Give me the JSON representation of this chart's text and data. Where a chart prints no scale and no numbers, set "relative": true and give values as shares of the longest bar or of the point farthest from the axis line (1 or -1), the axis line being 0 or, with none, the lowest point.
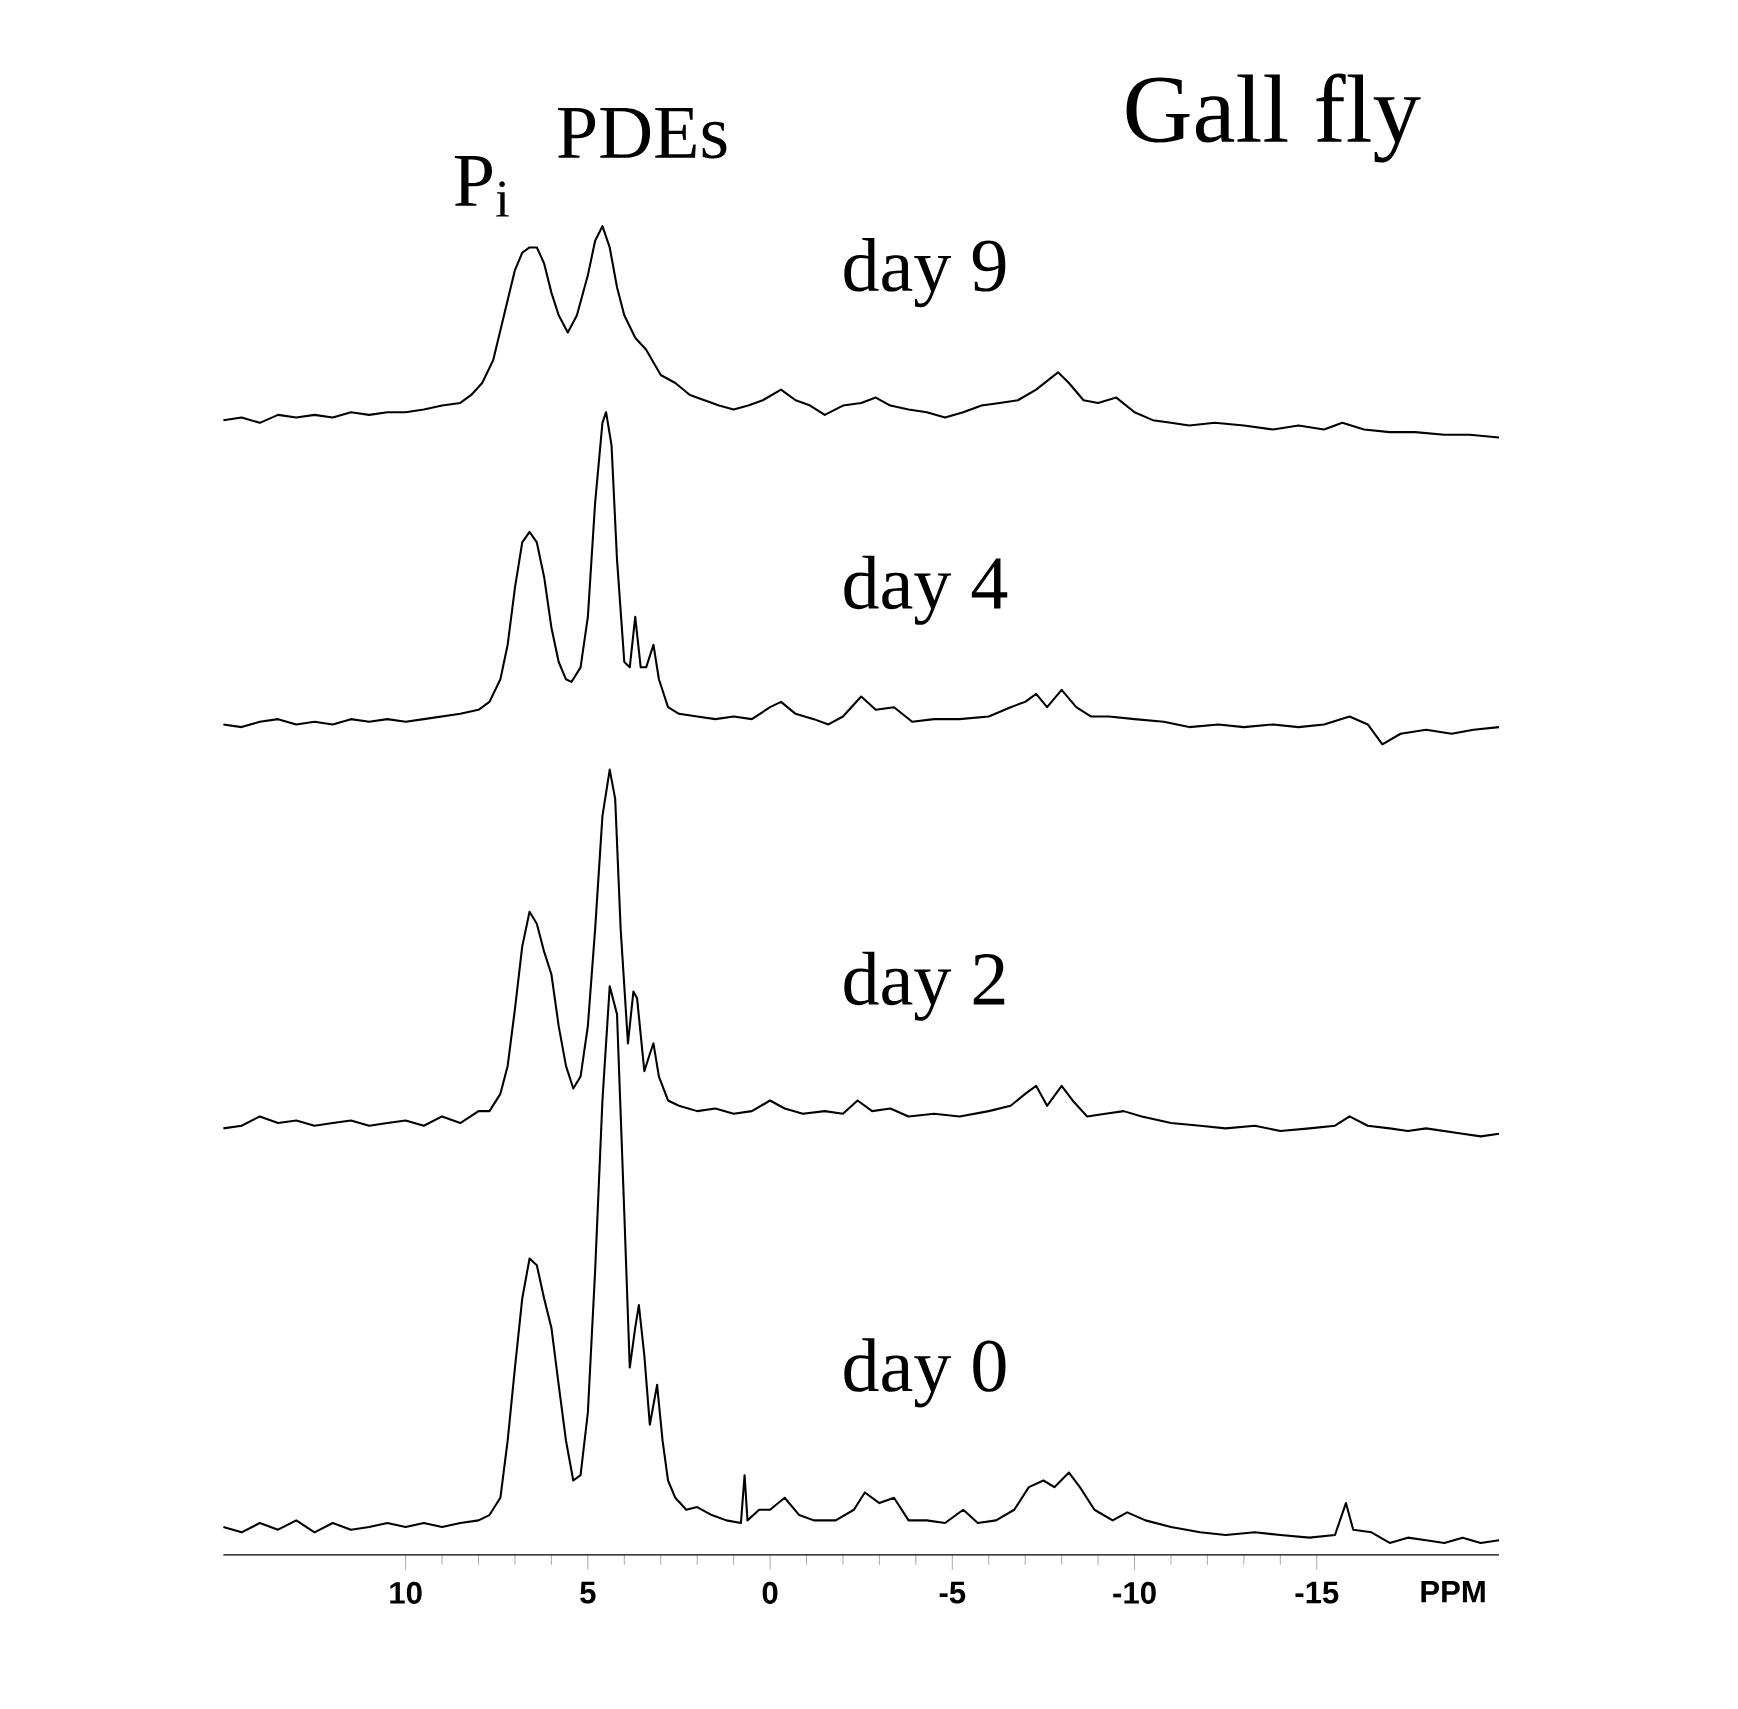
{
  "chart_data": {
    "type": "line",
    "title": "Gall fly",
    "xlabel": "PPM",
    "relative": true,
    "tick_labels": "x",
    "xlim": [
      15,
      -20
    ],
    "xticks": [
      10,
      5,
      0,
      -5,
      -10,
      -15
    ],
    "annotations": [
      "P$_{i}$",
      "PDEs"
    ],
    "series": [
      {
        "name": "day 0",
        "color": "#000000",
        "x": [
          15,
          14.5,
          14,
          13.5,
          13,
          12.5,
          12,
          11.5,
          11,
          10.5,
          10,
          9.5,
          9,
          8.5,
          8,
          7.7,
          7.4,
          7.2,
          7.0,
          6.8,
          6.6,
          6.4,
          6.2,
          6.0,
          5.8,
          5.6,
          5.4,
          5.2,
          5.0,
          4.8,
          4.6,
          4.4,
          4.2,
          4.0,
          3.85,
          3.7,
          3.6,
          3.45,
          3.3,
          3.1,
          2.95,
          2.8,
          2.6,
          2.3,
          2.0,
          1.6,
          1.2,
          0.8,
          0.7,
          0.62,
          0.3,
          0,
          -0.4,
          -0.8,
          -1.2,
          -1.8,
          -2.3,
          -2.6,
          -3.0,
          -3.4,
          -3.8,
          -4.3,
          -4.8,
          -5.3,
          -5.7,
          -6.2,
          -6.7,
          -7.1,
          -7.5,
          -7.8,
          -8.2,
          -8.5,
          -8.9,
          -9.4,
          -9.8,
          -10.3,
          -11,
          -11.8,
          -12.5,
          -13.3,
          -14,
          -14.8,
          -15.5,
          -15.8,
          -16.0,
          -16.5,
          -17,
          -17.5,
          -18,
          -18.5,
          -19,
          -19.5,
          -20
        ],
        "values": [
          0.021,
          0.017,
          0.024,
          0.019,
          0.026,
          0.017,
          0.024,
          0.019,
          0.021,
          0.024,
          0.021,
          0.024,
          0.021,
          0.024,
          0.026,
          0.03,
          0.043,
          0.086,
          0.141,
          0.193,
          0.223,
          0.218,
          0.193,
          0.171,
          0.128,
          0.086,
          0.056,
          0.06,
          0.107,
          0.214,
          0.342,
          0.428,
          0.407,
          0.257,
          0.141,
          0.171,
          0.188,
          0.15,
          0.098,
          0.128,
          0.086,
          0.056,
          0.043,
          0.034,
          0.036,
          0.03,
          0.026,
          0.024,
          0.06,
          0.026,
          0.034,
          0.034,
          0.043,
          0.03,
          0.026,
          0.026,
          0.034,
          0.047,
          0.039,
          0.043,
          0.026,
          0.026,
          0.024,
          0.034,
          0.024,
          0.026,
          0.034,
          0.051,
          0.056,
          0.051,
          0.062,
          0.051,
          0.034,
          0.026,
          0.032,
          0.026,
          0.021,
          0.017,
          0.015,
          0.017,
          0.015,
          0.013,
          0.015,
          0.039,
          0.019,
          0.017,
          0.009,
          0.013,
          0.011,
          0.009,
          0.013,
          0.009,
          0.011
        ]
      },
      {
        "name": "day 2",
        "color": "#000000",
        "x": [
          15,
          14.5,
          14,
          13.5,
          13,
          12.5,
          12,
          11.5,
          11,
          10.5,
          10,
          9.5,
          9,
          8.5,
          8,
          7.7,
          7.4,
          7.2,
          7.0,
          6.8,
          6.6,
          6.4,
          6.2,
          6.0,
          5.8,
          5.6,
          5.4,
          5.2,
          5.0,
          4.8,
          4.6,
          4.4,
          4.25,
          4.1,
          3.9,
          3.75,
          3.65,
          3.45,
          3.3,
          3.2,
          3.05,
          2.8,
          2.5,
          2.0,
          1.5,
          1.0,
          0.5,
          0,
          -0.4,
          -0.9,
          -1.5,
          -2.0,
          -2.4,
          -2.8,
          -3.3,
          -3.8,
          -4.5,
          -5.2,
          -6,
          -6.6,
          -7.0,
          -7.3,
          -7.6,
          -8.0,
          -8.3,
          -8.7,
          -9.2,
          -9.7,
          -10.2,
          -11,
          -11.8,
          -12.5,
          -13.3,
          -14,
          -14.8,
          -15.5,
          -15.9,
          -16.4,
          -17,
          -17.5,
          -18,
          -18.5,
          -19,
          -19.5,
          -20
        ],
        "values": [
          0.321,
          0.323,
          0.33,
          0.325,
          0.327,
          0.323,
          0.325,
          0.327,
          0.323,
          0.325,
          0.327,
          0.323,
          0.33,
          0.325,
          0.334,
          0.334,
          0.347,
          0.368,
          0.411,
          0.458,
          0.484,
          0.475,
          0.454,
          0.437,
          0.398,
          0.368,
          0.351,
          0.36,
          0.398,
          0.471,
          0.556,
          0.591,
          0.569,
          0.471,
          0.385,
          0.424,
          0.419,
          0.364,
          0.377,
          0.385,
          0.36,
          0.342,
          0.338,
          0.334,
          0.336,
          0.332,
          0.334,
          0.342,
          0.336,
          0.332,
          0.334,
          0.332,
          0.342,
          0.334,
          0.336,
          0.33,
          0.332,
          0.33,
          0.334,
          0.338,
          0.347,
          0.353,
          0.338,
          0.353,
          0.342,
          0.33,
          0.332,
          0.334,
          0.33,
          0.325,
          0.323,
          0.321,
          0.323,
          0.319,
          0.321,
          0.323,
          0.33,
          0.323,
          0.321,
          0.319,
          0.321,
          0.319,
          0.317,
          0.315,
          0.317
        ]
      },
      {
        "name": "day 4",
        "color": "#000000",
        "x": [
          15,
          14.5,
          14,
          13.5,
          13,
          12.5,
          12,
          11.5,
          11,
          10.5,
          10,
          9.5,
          9,
          8.5,
          8,
          7.7,
          7.4,
          7.2,
          7.0,
          6.8,
          6.6,
          6.4,
          6.2,
          6.0,
          5.8,
          5.6,
          5.45,
          5.2,
          5.0,
          4.8,
          4.6,
          4.5,
          4.35,
          4.2,
          4.0,
          3.85,
          3.7,
          3.55,
          3.4,
          3.2,
          3.05,
          2.8,
          2.5,
          2.0,
          1.5,
          1.0,
          0.5,
          0,
          -0.3,
          -0.7,
          -1.2,
          -1.6,
          -2.0,
          -2.5,
          -2.9,
          -3.4,
          -3.9,
          -4.5,
          -5.2,
          -6.0,
          -6.6,
          -7.0,
          -7.3,
          -7.6,
          -8.0,
          -8.4,
          -8.8,
          -9.3,
          -10,
          -10.8,
          -11.5,
          -12.3,
          -13,
          -13.8,
          -14.5,
          -15.2,
          -15.9,
          -16.4,
          -16.8,
          -17.3,
          -18,
          -18.7,
          -19.3,
          -20
        ],
        "values": [
          0.625,
          0.623,
          0.627,
          0.629,
          0.625,
          0.627,
          0.625,
          0.629,
          0.627,
          0.629,
          0.627,
          0.629,
          0.631,
          0.633,
          0.636,
          0.642,
          0.659,
          0.685,
          0.728,
          0.762,
          0.77,
          0.762,
          0.736,
          0.698,
          0.672,
          0.659,
          0.657,
          0.668,
          0.706,
          0.792,
          0.852,
          0.86,
          0.835,
          0.749,
          0.672,
          0.668,
          0.706,
          0.668,
          0.668,
          0.685,
          0.659,
          0.638,
          0.633,
          0.631,
          0.629,
          0.631,
          0.629,
          0.638,
          0.642,
          0.633,
          0.629,
          0.625,
          0.631,
          0.646,
          0.636,
          0.638,
          0.627,
          0.629,
          0.629,
          0.631,
          0.638,
          0.642,
          0.648,
          0.638,
          0.651,
          0.638,
          0.631,
          0.631,
          0.629,
          0.627,
          0.623,
          0.625,
          0.623,
          0.625,
          0.623,
          0.625,
          0.631,
          0.625,
          0.61,
          0.618,
          0.621,
          0.618,
          0.621,
          0.623
        ]
      },
      {
        "name": "day 9",
        "color": "#000000",
        "x": [
          15,
          14.5,
          14,
          13.5,
          13,
          12.5,
          12,
          11.5,
          11,
          10.5,
          10,
          9.5,
          9,
          8.5,
          8.2,
          7.9,
          7.6,
          7.3,
          7.0,
          6.8,
          6.6,
          6.4,
          6.2,
          6.0,
          5.8,
          5.55,
          5.3,
          5.0,
          4.8,
          4.6,
          4.4,
          4.2,
          4.0,
          3.7,
          3.4,
          3.0,
          2.6,
          2.2,
          1.8,
          1.4,
          1.0,
          0.6,
          0.2,
          -0.3,
          -0.7,
          -1.1,
          -1.5,
          -2.0,
          -2.5,
          -2.9,
          -3.3,
          -3.8,
          -4.3,
          -4.8,
          -5.3,
          -5.8,
          -6.3,
          -6.8,
          -7.3,
          -7.9,
          -8.2,
          -8.6,
          -9.0,
          -9.5,
          -10,
          -10.5,
          -11.0,
          -11.5,
          -12.2,
          -13,
          -13.8,
          -14.5,
          -15.2,
          -15.7,
          -16.3,
          -17,
          -17.7,
          -18.5,
          -19.2,
          -20
        ],
        "values": [
          0.854,
          0.856,
          0.852,
          0.858,
          0.856,
          0.858,
          0.856,
          0.86,
          0.858,
          0.86,
          0.86,
          0.862,
          0.865,
          0.867,
          0.873,
          0.882,
          0.899,
          0.933,
          0.967,
          0.98,
          0.984,
          0.984,
          0.972,
          0.95,
          0.933,
          0.92,
          0.933,
          0.963,
          0.989,
          1.0,
          0.984,
          0.954,
          0.933,
          0.916,
          0.907,
          0.888,
          0.882,
          0.873,
          0.869,
          0.865,
          0.862,
          0.865,
          0.869,
          0.877,
          0.869,
          0.865,
          0.858,
          0.865,
          0.867,
          0.871,
          0.865,
          0.862,
          0.86,
          0.856,
          0.86,
          0.865,
          0.867,
          0.869,
          0.877,
          0.89,
          0.882,
          0.869,
          0.867,
          0.871,
          0.86,
          0.854,
          0.852,
          0.85,
          0.852,
          0.85,
          0.847,
          0.85,
          0.847,
          0.852,
          0.847,
          0.845,
          0.845,
          0.843,
          0.843,
          0.841
        ]
      }
    ]
  }
}
